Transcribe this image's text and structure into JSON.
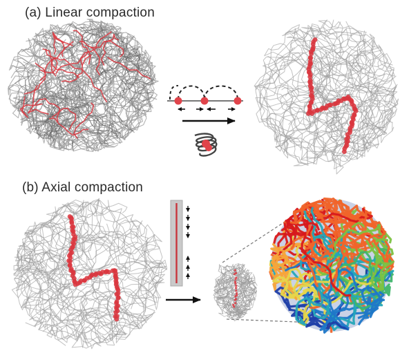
{
  "panels": {
    "a": {
      "label": "(a) Linear compaction"
    },
    "b": {
      "label": "(b) Axial compaction"
    }
  },
  "colors": {
    "strand": "#9a9a9a",
    "strand_dark": "#5c5c5c",
    "highlight": "#d9363e",
    "arrow": "#111111",
    "spectrum": [
      "#d7191c",
      "#f0642a",
      "#f7a43a",
      "#e6d64a",
      "#7cc242",
      "#3fb56a",
      "#25a7b8",
      "#1f78c8",
      "#1f3fa8"
    ]
  },
  "icons": {
    "linear_step": "arrow-right-icon",
    "axial_step": "arrow-right-icon",
    "loop_schematic": "loop-extrusion-icon",
    "coil_schematic": "helical-coil-icon",
    "axis_schematic": "compaction-axis-icon"
  }
}
